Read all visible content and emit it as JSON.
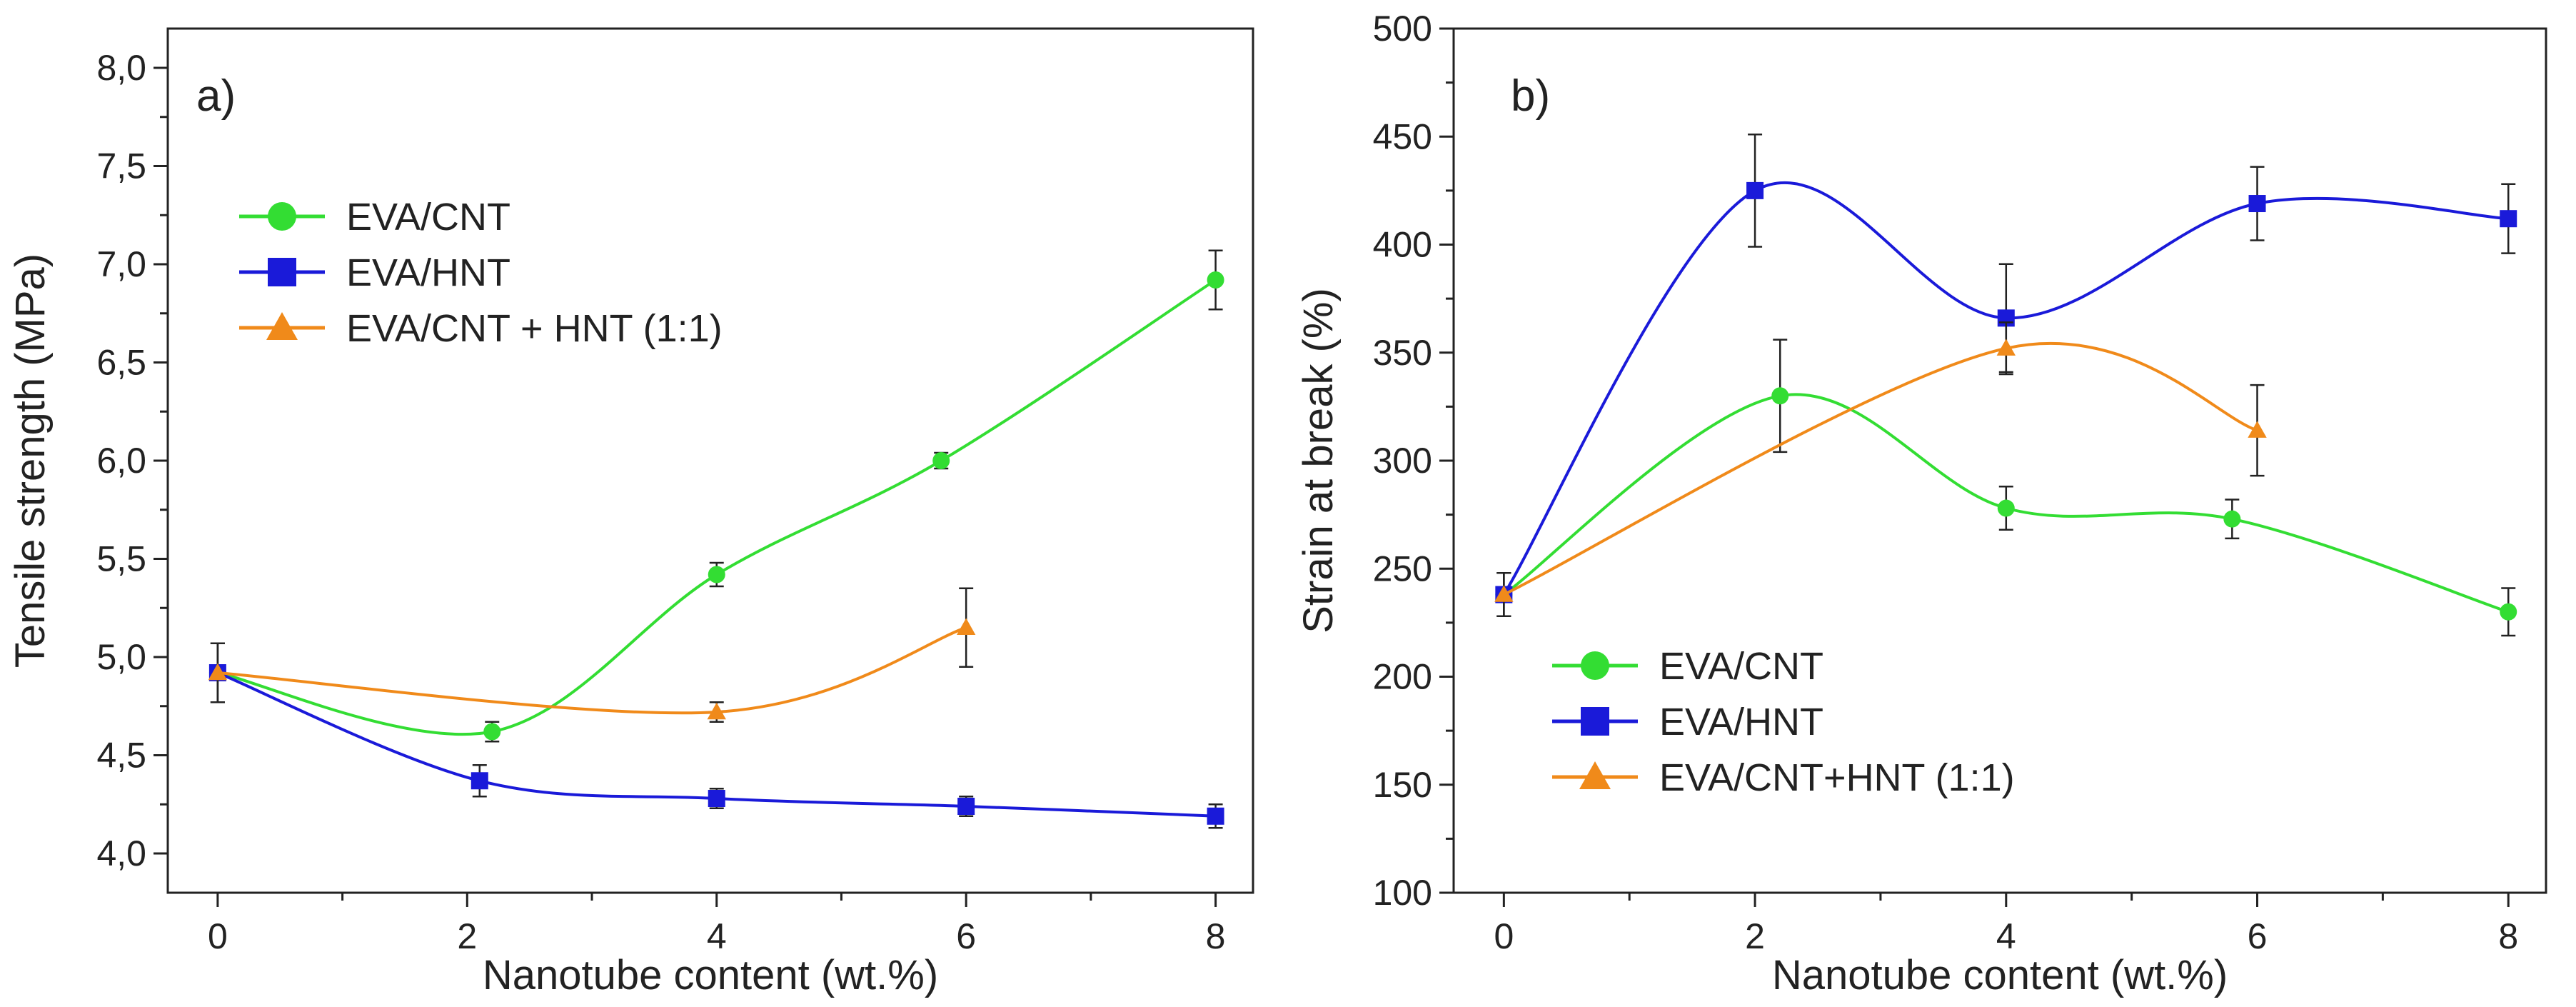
{
  "chart_data": [
    {
      "type": "line",
      "panel_label": "a)",
      "xlabel": "Nanotube content (wt.%)",
      "ylabel": "Tensile strength (MPa)",
      "xlim": [
        -0.4,
        8.3
      ],
      "ylim": [
        3.8,
        8.2
      ],
      "xticks": [
        0,
        2,
        4,
        6,
        8
      ],
      "yticks": [
        4.0,
        4.5,
        5.0,
        5.5,
        6.0,
        6.5,
        7.0,
        7.5,
        8.0
      ],
      "ytick_labels": [
        "4,0",
        "4,5",
        "5,0",
        "5,5",
        "6,0",
        "6,5",
        "7,0",
        "7,5",
        "8,0"
      ],
      "legend_position": "upper-left",
      "series": [
        {
          "name": "EVA/CNT",
          "color": "#33dd33",
          "marker": "circle",
          "x": [
            0,
            2.2,
            4,
            5.8,
            8
          ],
          "y": [
            4.92,
            4.62,
            5.42,
            6.0,
            6.92
          ],
          "err": [
            0.15,
            0.05,
            0.06,
            0.04,
            0.15
          ]
        },
        {
          "name": "EVA/HNT",
          "color": "#1a1ad9",
          "marker": "square",
          "x": [
            0,
            2.1,
            4,
            6,
            8
          ],
          "y": [
            4.92,
            4.37,
            4.28,
            4.24,
            4.19
          ],
          "err": [
            0.15,
            0.08,
            0.05,
            0.05,
            0.06
          ]
        },
        {
          "name": "EVA/CNT + HNT (1:1)",
          "color": "#f08a1a",
          "marker": "triangle",
          "x": [
            0,
            4,
            6
          ],
          "y": [
            4.92,
            4.72,
            5.15
          ],
          "err": [
            0.15,
            0.05,
            0.2
          ]
        }
      ]
    },
    {
      "type": "line",
      "panel_label": "b)",
      "xlabel": "Nanotube content (wt.%)",
      "ylabel": "Strain at break (%)",
      "xlim": [
        -0.4,
        8.3
      ],
      "ylim": [
        100,
        500
      ],
      "xticks": [
        0,
        2,
        4,
        6,
        8
      ],
      "yticks": [
        100,
        150,
        200,
        250,
        300,
        350,
        400,
        450,
        500
      ],
      "ytick_labels": [
        "100",
        "150",
        "200",
        "250",
        "300",
        "350",
        "400",
        "450",
        "500"
      ],
      "legend_position": "lower-left",
      "series": [
        {
          "name": "EVA/CNT",
          "color": "#33dd33",
          "marker": "circle",
          "x": [
            0,
            2.2,
            4,
            5.8,
            8
          ],
          "y": [
            238,
            330,
            278,
            273,
            230
          ],
          "err": [
            10,
            26,
            10,
            9,
            11
          ]
        },
        {
          "name": "EVA/HNT",
          "color": "#1a1ad9",
          "marker": "square",
          "x": [
            0,
            2,
            4,
            6,
            8
          ],
          "y": [
            238,
            425,
            366,
            419,
            412
          ],
          "err": [
            10,
            26,
            25,
            17,
            16
          ]
        },
        {
          "name": "EVA/CNT+HNT (1:1)",
          "color": "#f08a1a",
          "marker": "triangle",
          "x": [
            0,
            4,
            6
          ],
          "y": [
            238,
            352,
            314
          ],
          "err": [
            10,
            12,
            21
          ]
        }
      ]
    }
  ]
}
